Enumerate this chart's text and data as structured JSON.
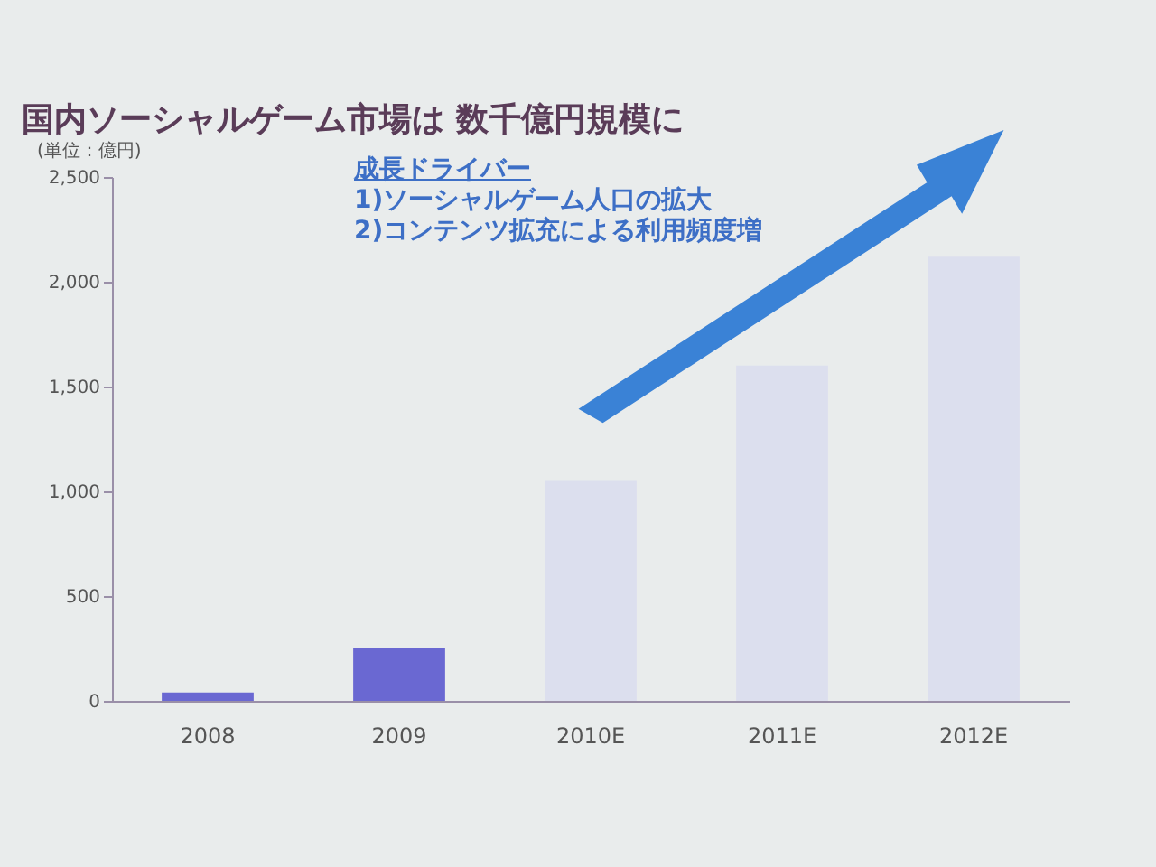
{
  "chart_data": {
    "type": "bar",
    "title": "国内ソーシャルゲーム市場は 数千億円規模に",
    "ylabel": "(単位：億円)",
    "categories": [
      "2008",
      "2009",
      "2010E",
      "2011E",
      "2012E"
    ],
    "values": [
      40,
      250,
      1050,
      1600,
      2120
    ],
    "colors": [
      "#6a68d2",
      "#6a68d2",
      "#dcdfee",
      "#dcdfee",
      "#dcdfee"
    ],
    "ylim": [
      0,
      2500
    ],
    "yticks": [
      0,
      500,
      {
        "value": 1000,
        "label": "1,000"
      },
      {
        "value": 1500,
        "label": "1,500"
      },
      {
        "value": 2000,
        "label": "2,000"
      },
      {
        "value": 2500,
        "label": "2,500"
      }
    ],
    "annotations": [
      "成長ドライバー",
      "1)ソーシャルゲーム人口の拡大",
      "2)コンテンツ拡充による利用頻度増"
    ]
  }
}
